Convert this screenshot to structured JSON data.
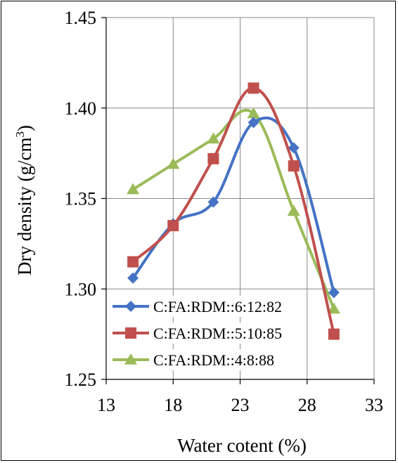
{
  "chart_data": {
    "type": "line",
    "title": "",
    "xlabel": "Water cotent (%)",
    "ylabel": "Dry density (g/cm³)",
    "ylabel_main": "Dry density (g/cm",
    "ylabel_sup": "3",
    "ylabel_end": ")",
    "xlim": [
      13,
      33
    ],
    "ylim": [
      1.25,
      1.45
    ],
    "x_ticks": [
      13,
      18,
      23,
      28,
      33
    ],
    "y_ticks": [
      1.25,
      1.3,
      1.35,
      1.4,
      1.45
    ],
    "x_tick_labels": [
      "13",
      "18",
      "23",
      "28",
      "33"
    ],
    "y_tick_labels": [
      "1.25",
      "1.30",
      "1.35",
      "1.40",
      "1.45"
    ],
    "grid": true,
    "legend_position": "bottom-left",
    "smooth": true,
    "series": [
      {
        "name": "C:FA:RDM::6:12:82",
        "color": "#4472C4",
        "marker": "diamond",
        "x": [
          15,
          18,
          21,
          24,
          27,
          30
        ],
        "y": [
          1.306,
          1.336,
          1.348,
          1.392,
          1.378,
          1.298
        ]
      },
      {
        "name": "C:FA:RDM::5:10:85",
        "color": "#C0504D",
        "marker": "square",
        "x": [
          15,
          18,
          21,
          24,
          27,
          30
        ],
        "y": [
          1.315,
          1.335,
          1.372,
          1.411,
          1.368,
          1.275
        ]
      },
      {
        "name": "C:FA:RDM::4:8:88",
        "color": "#9BBB59",
        "marker": "triangle",
        "x": [
          15,
          18,
          21,
          24,
          27,
          30
        ],
        "y": [
          1.355,
          1.369,
          1.383,
          1.397,
          1.343,
          1.289
        ]
      }
    ]
  }
}
